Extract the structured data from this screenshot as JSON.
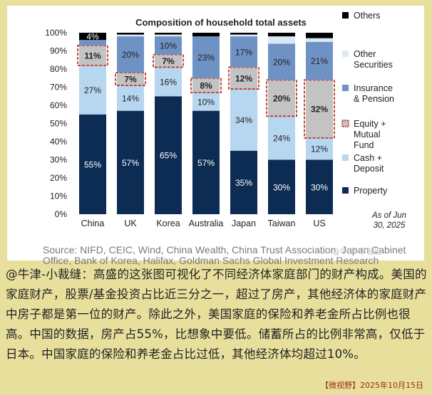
{
  "chart_data": {
    "type": "bar",
    "stacked": true,
    "title": "Composition of household total assets",
    "categories": [
      "China",
      "UK",
      "Korea",
      "Australia",
      "Japan",
      "Taiwan",
      "US"
    ],
    "y_ticks": [
      "0%",
      "10%",
      "20%",
      "30%",
      "40%",
      "50%",
      "60%",
      "70%",
      "80%",
      "90%",
      "100%"
    ],
    "ylim": [
      0,
      100
    ],
    "series": [
      {
        "name": "Property",
        "color": "#0d2c54",
        "values": [
          55,
          57,
          65,
          57,
          35,
          30,
          30
        ],
        "labels": [
          "55%",
          "57%",
          "65%",
          "57%",
          "35%",
          "30%",
          "30%"
        ]
      },
      {
        "name": "Cash + Deposit",
        "color": "#b7d6f0",
        "values": [
          27,
          14,
          16,
          10,
          34,
          24,
          12
        ],
        "labels": [
          "27%",
          "14%",
          "16%",
          "10%",
          "34%",
          "24%",
          "12%"
        ]
      },
      {
        "name": "Equity + Mutual Fund",
        "color": "#c3c3c3",
        "highlight": true,
        "values": [
          11,
          7,
          7,
          8,
          12,
          20,
          32
        ],
        "labels": [
          "11%",
          "7%",
          "7%",
          "8%",
          "12%",
          "20%",
          "32%"
        ]
      },
      {
        "name": "Insurance & Pension",
        "color": "#6f92c4",
        "values": [
          3,
          20,
          10,
          23,
          17,
          20,
          21
        ],
        "labels": [
          "",
          "20%",
          "10%",
          "23%",
          "17%",
          "20%",
          "21%"
        ]
      },
      {
        "name": "Other Securities",
        "color": "#dbe9f6",
        "values": [
          0,
          1,
          1,
          0,
          1,
          4,
          2
        ],
        "labels": [
          "",
          "",
          "",
          "",
          "",
          "",
          ""
        ]
      },
      {
        "name": "Others",
        "color": "#000000",
        "values": [
          4,
          1,
          1,
          2,
          1,
          2,
          3
        ],
        "labels": [
          "4%",
          "",
          "",
          "",
          "",
          "",
          ""
        ]
      }
    ],
    "legend_order": [
      "Others",
      "Other Securities",
      "Insurance & Pension",
      "Equity + Mutual Fund",
      "Cash + Deposit",
      "Property"
    ],
    "legend_position": "right",
    "annotation": "As of Jun 30, 2025"
  },
  "source_text": "Source: NIFD, CEIC, Wind, China Wealth, China Trust Association, Japan Cabinet Office, Bank of Korea, Halifax, Goldman Sachs Global Investment Research",
  "watermark": "@牛津-小裁缝",
  "commentary": "@牛津-小裁缝：高盛的这张图可视化了不同经济体家庭部门的财产构成。美国的家庭财产，股票/基金投资占比近三分之一，超过了房产，其他经济体的家庭财产中房子都是第一位的财产。除此之外，美国家庭的保险和养老金所占比例也很高。中国的数据，房产占55%，比想象中要低。储蓄所占的比例非常高，仅低于日本。中国家庭的保险和养老金占比过低，其他经济体均超过10%。",
  "footer": "【微视野】2025年10月15日"
}
